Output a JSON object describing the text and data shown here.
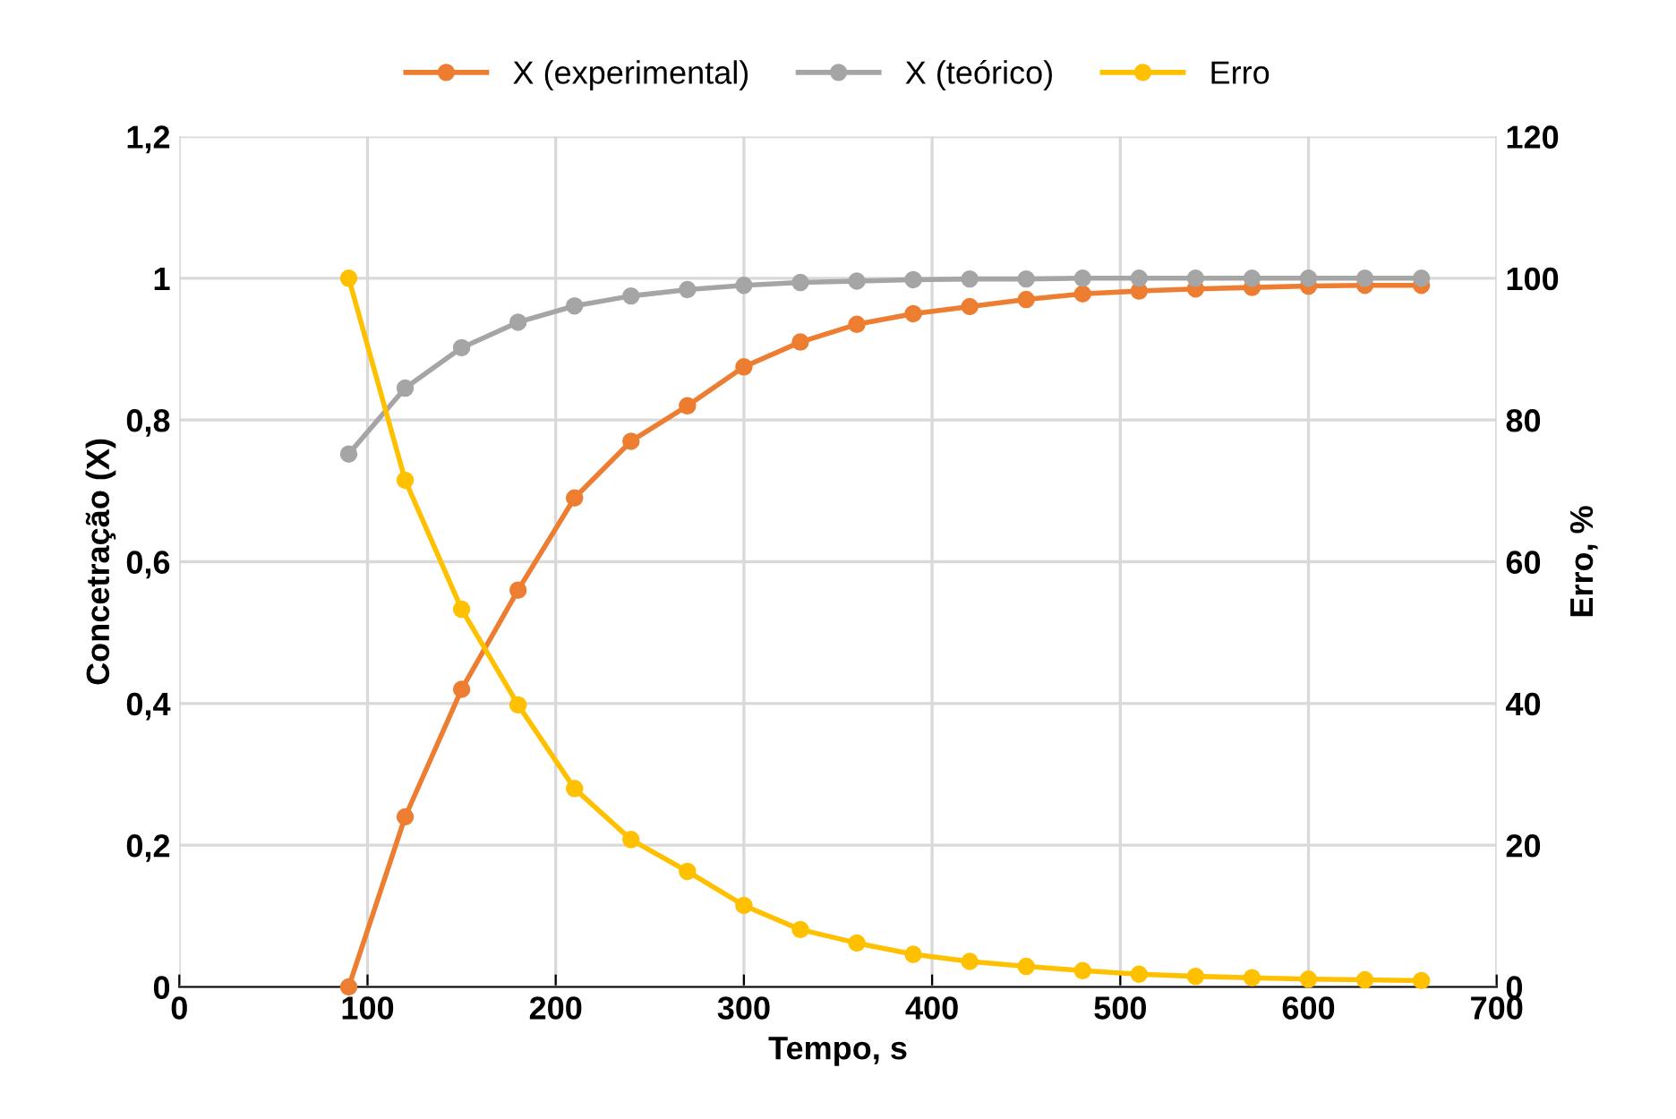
{
  "chart_data": {
    "type": "line",
    "xlabel": "Tempo, s",
    "ylabel": "Concetração (X)",
    "y2label": "Erro, %",
    "x": [
      90,
      120,
      150,
      180,
      210,
      240,
      270,
      300,
      330,
      360,
      390,
      420,
      450,
      480,
      510,
      540,
      570,
      600,
      630,
      660
    ],
    "series": [
      {
        "name": "X (experimental)",
        "color": "#ed7d31",
        "values": [
          0,
          0.24,
          0.42,
          0.56,
          0.69,
          0.77,
          0.82,
          0.875,
          0.91,
          0.935,
          0.95,
          0.96,
          0.97,
          0.978,
          0.982,
          0.985,
          0.987,
          0.989,
          0.99,
          0.99
        ]
      },
      {
        "name": "X (teórico)",
        "color": "#a5a5a5",
        "values": [
          0.752,
          0.845,
          0.902,
          0.938,
          0.961,
          0.975,
          0.984,
          0.99,
          0.994,
          0.996,
          0.998,
          0.999,
          0.999,
          1,
          1,
          1,
          1,
          1,
          1,
          1
        ]
      },
      {
        "name": "Erro",
        "color": "#ffc000",
        "axis": "y2",
        "values": [
          100,
          71.5,
          53.3,
          39.8,
          28,
          20.8,
          16.3,
          11.5,
          8.1,
          6.2,
          4.6,
          3.6,
          2.9,
          2.3,
          1.8,
          1.5,
          1.3,
          1.1,
          1.0,
          0.9
        ]
      }
    ],
    "xlim": [
      0,
      700
    ],
    "xticks": [
      0,
      100,
      200,
      300,
      400,
      500,
      600,
      700
    ],
    "ylim": [
      0,
      1.2
    ],
    "yticks": [
      0,
      {
        "value": 0.2,
        "label": "0,2"
      },
      {
        "value": 0.4,
        "label": "0,4"
      },
      {
        "value": 0.6,
        "label": "0,6"
      },
      {
        "value": 0.8,
        "label": "0,8"
      },
      1,
      {
        "value": 1.2,
        "label": "1,2"
      }
    ],
    "y2lim": [
      0,
      120
    ],
    "y2ticks": [
      0,
      20,
      40,
      60,
      80,
      100,
      120
    ],
    "grid": true,
    "legend": "top",
    "marker": "circle",
    "line_style": "solid"
  }
}
